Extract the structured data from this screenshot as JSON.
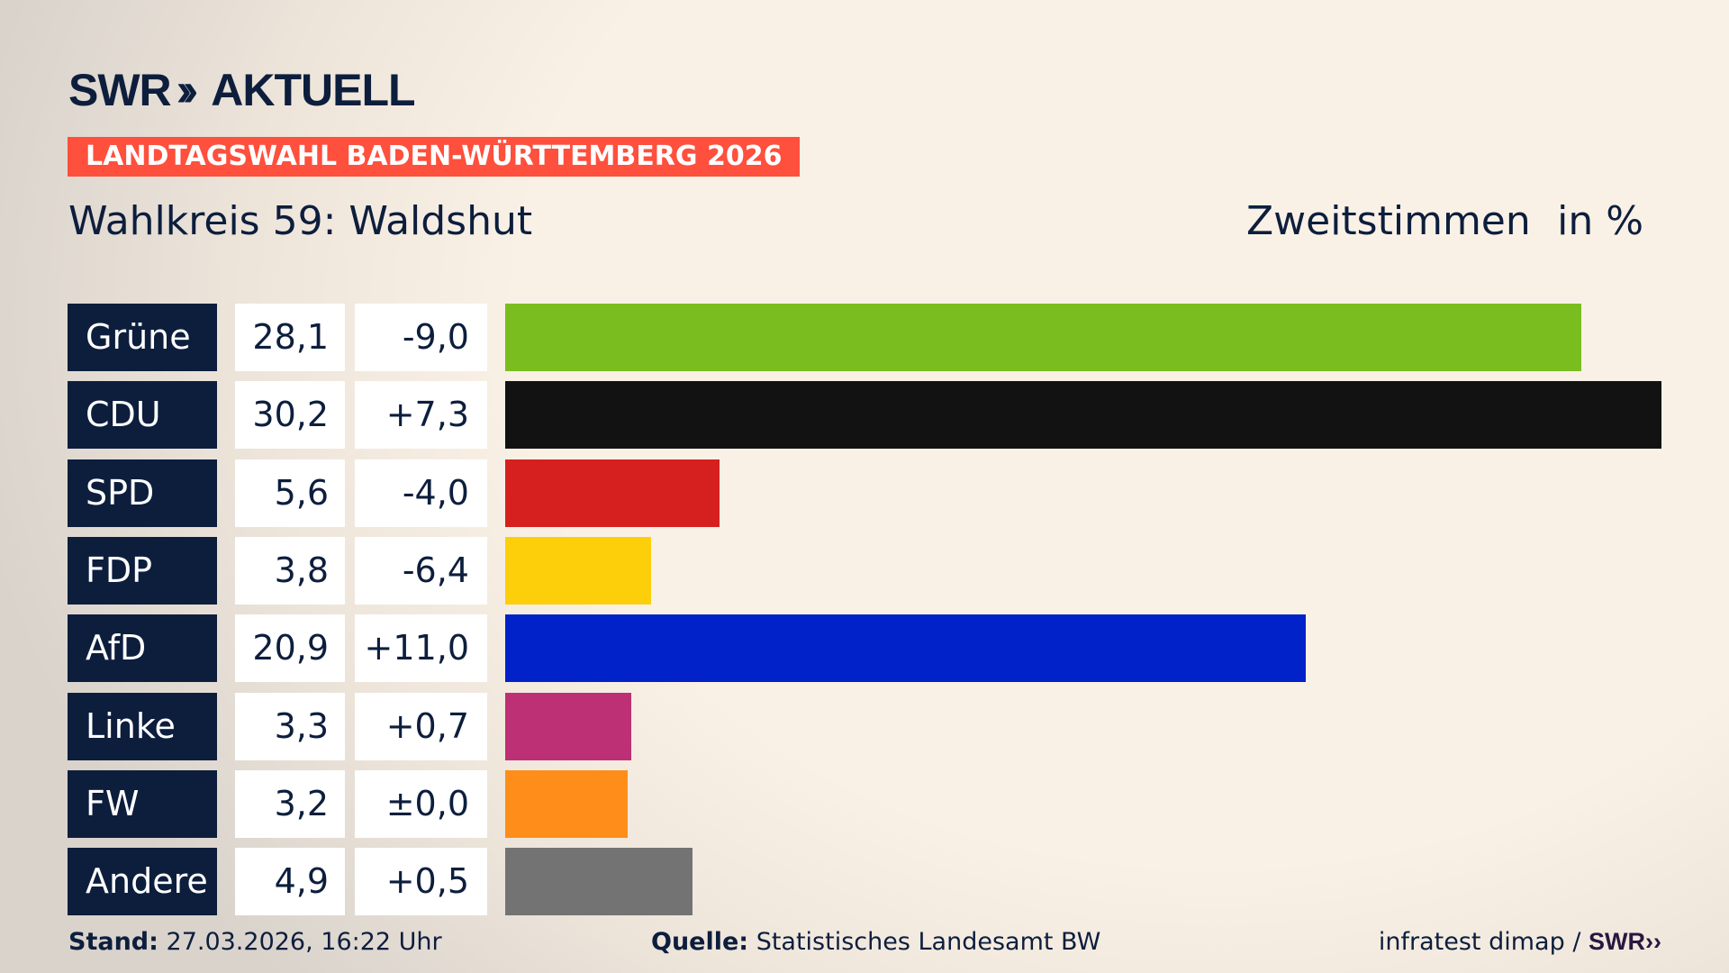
{
  "brand": {
    "logo_text": "SWR",
    "logo_suffix": "AKTUELL"
  },
  "banner": "LANDTAGSWAHL BADEN-WÜRTTEMBERG 2026",
  "subtitle": "Wahlkreis 59: Waldshut",
  "measure": "Zweitstimmen",
  "unit": "in %",
  "chart_data": {
    "type": "bar",
    "orientation": "horizontal",
    "categories": [
      "Grüne",
      "CDU",
      "SPD",
      "FDP",
      "AfD",
      "Linke",
      "FW",
      "Andere"
    ],
    "values": [
      28.1,
      30.2,
      5.6,
      3.8,
      20.9,
      3.3,
      3.2,
      4.9
    ],
    "value_labels": [
      "28,1",
      "30,2",
      "5,6",
      "3,8",
      "20,9",
      "3,3",
      "3,2",
      "4,9"
    ],
    "change_labels": [
      "-9,0",
      "+7,3",
      "-4,0",
      "-6,4",
      "+11,0",
      "+0,7",
      "±0,0",
      "+0,5"
    ],
    "changes": [
      -9.0,
      7.3,
      -4.0,
      -6.4,
      11.0,
      0.7,
      0.0,
      0.5
    ],
    "colors": [
      "#7abd1f",
      "#121212",
      "#d6201f",
      "#fdcf0a",
      "#0022c8",
      "#bd3075",
      "#ff8d19",
      "#737373"
    ],
    "grid": false
  },
  "footer": {
    "stand_label": "Stand:",
    "stand_value": "27.03.2026, 16:22 Uhr",
    "source_label": "Quelle:",
    "source_value": "Statistisches Landesamt BW",
    "credit": "infratest dimap /",
    "credit_brand": "SWR"
  }
}
